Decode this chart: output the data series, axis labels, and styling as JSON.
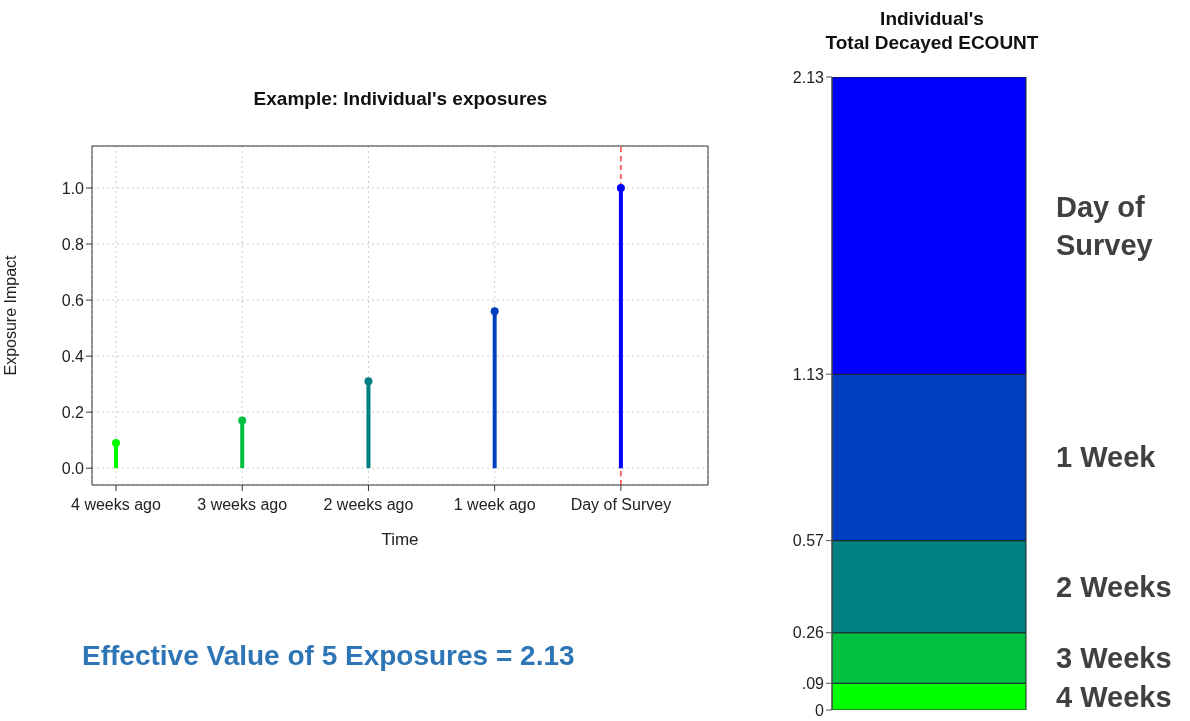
{
  "chart_data": [
    {
      "type": "lollipop",
      "title": "Example: Individual's exposures",
      "xlabel": "Time",
      "ylabel": "Exposure Impact",
      "categories": [
        "4 weeks ago",
        "3 weeks ago",
        "2 weeks ago",
        "1 week ago",
        "Day of Survey"
      ],
      "values": [
        0.09,
        0.17,
        0.31,
        0.56,
        1.0
      ],
      "colors": [
        "#00ff00",
        "#00c040",
        "#008080",
        "#0040c0",
        "#0000ff"
      ],
      "ylim": [
        -0.06,
        1.15
      ],
      "yticks": [
        {
          "value": 0,
          "label": "0.0"
        },
        0.2,
        0.4,
        0.6,
        0.8,
        {
          "value": 1,
          "label": "1.0"
        }
      ],
      "grid": true,
      "marker": "circle",
      "ref_lines": [
        {
          "axis": "x",
          "value": "Day of Survey",
          "color": "#ff4040",
          "line_style": "dashed"
        }
      ],
      "annotations": [
        "Effective Value of 5 Exposures = 2.13"
      ]
    },
    {
      "type": "bar",
      "stacked": true,
      "title": "Individual's\nTotal Decayed ECOUNT",
      "categories": [
        null
      ],
      "series": [
        {
          "name": "4 Weeks",
          "color": "#00ff00",
          "values": [
            0.09
          ]
        },
        {
          "name": "3 Weeks",
          "color": "#00c040",
          "values": [
            0.17
          ]
        },
        {
          "name": "2 Weeks",
          "color": "#008080",
          "values": [
            0.31
          ]
        },
        {
          "name": "1 Week",
          "color": "#0040c0",
          "values": [
            0.56
          ]
        },
        {
          "name": "Day of Survey",
          "color": "#0000ff",
          "values": [
            1.0
          ]
        }
      ],
      "ylim": [
        0,
        2.13
      ],
      "yticks": [
        0,
        {
          "value": 0.09,
          "label": ".09"
        },
        0.26,
        0.57,
        1.13,
        2.13
      ],
      "tick_labels": "y"
    }
  ]
}
